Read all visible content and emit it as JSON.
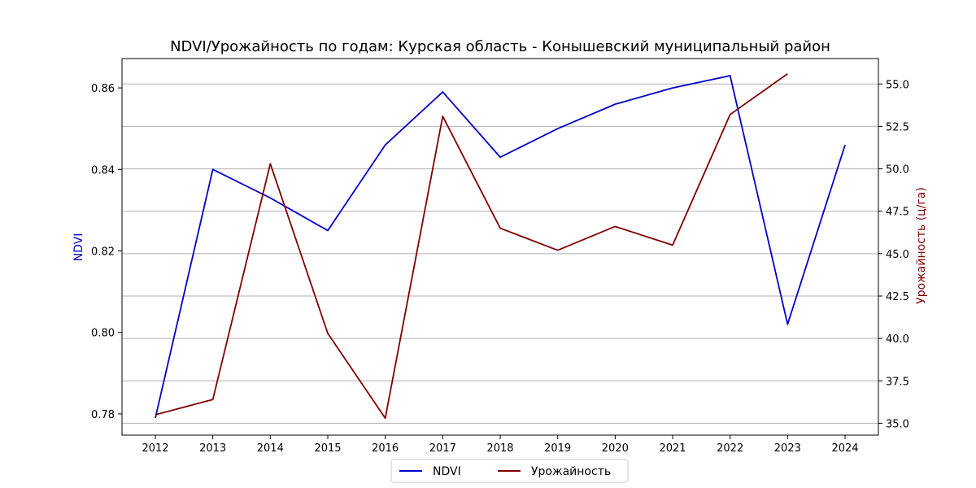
{
  "chart_data": {
    "type": "line",
    "title": "NDVI/Урожайность по годам: Курская область - Конышевский муниципальный район",
    "xlabel": "",
    "ylabel_left": "NDVI",
    "ylabel_right": "Урожайность (ц/га)",
    "x": [
      2012,
      2013,
      2014,
      2015,
      2016,
      2017,
      2018,
      2019,
      2020,
      2021,
      2022,
      2023,
      2024
    ],
    "x_ticks": [
      "2012",
      "2013",
      "2014",
      "2015",
      "2016",
      "2017",
      "2018",
      "2019",
      "2020",
      "2021",
      "2022",
      "2023",
      "2024"
    ],
    "ylim_left": [
      0.7748,
      0.8672
    ],
    "ylim_right": [
      34.3,
      56.5
    ],
    "y_ticks_left": [
      "0.78",
      "0.80",
      "0.82",
      "0.84",
      "0.86"
    ],
    "y_ticks_right": [
      "35.0",
      "37.5",
      "40.0",
      "42.5",
      "45.0",
      "47.5",
      "50.0",
      "52.5",
      "55.0"
    ],
    "grid": "horizontal, right axis",
    "legend_position": "bottom-center",
    "series": [
      {
        "name": "NDVI",
        "axis": "left",
        "color": "#0000cc",
        "x": [
          2012,
          2013,
          2014,
          2015,
          2016,
          2017,
          2018,
          2019,
          2020,
          2021,
          2022,
          2023,
          2024
        ],
        "values": [
          0.779,
          0.84,
          0.833,
          0.825,
          0.846,
          0.859,
          0.843,
          0.85,
          0.856,
          0.86,
          0.863,
          0.802,
          0.846
        ]
      },
      {
        "name": "Урожайность",
        "axis": "right",
        "color": "#800000",
        "x": [
          2012,
          2013,
          2014,
          2015,
          2016,
          2017,
          2018,
          2019,
          2020,
          2021,
          2022,
          2023
        ],
        "values": [
          35.5,
          36.4,
          50.3,
          40.3,
          35.3,
          53.1,
          46.5,
          45.2,
          46.6,
          45.5,
          53.2,
          55.6
        ]
      }
    ]
  }
}
